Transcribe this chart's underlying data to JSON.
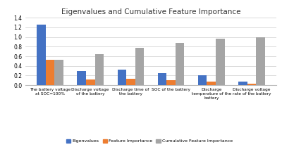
{
  "title": "Eigenvalues and Cumulative Feature Importance",
  "categories": [
    "The battery voltage\nat SOC=100%",
    "Discharge voltage\nof the battery",
    "Discharge time of\nthe battery",
    "SOC of the battery",
    "Discharge\ntemperature of the\nbattery",
    "Discharge voltage\nrate of the battery"
  ],
  "eigenvalues": [
    1.26,
    0.29,
    0.32,
    0.25,
    0.21,
    0.08
  ],
  "feature_importance": [
    0.53,
    0.12,
    0.13,
    0.1,
    0.08,
    0.03
  ],
  "cumulative_fi": [
    0.53,
    0.65,
    0.78,
    0.87,
    0.96,
    1.0
  ],
  "colors": {
    "eigenvalues": "#4472C4",
    "feature_importance": "#ED7D31",
    "cumulative_fi": "#A5A5A5"
  },
  "ylim": [
    0,
    1.4
  ],
  "yticks": [
    0,
    0.2,
    0.4,
    0.6,
    0.8,
    1.0,
    1.2,
    1.4
  ],
  "legend_labels": [
    "Eigenvalues",
    "Feature Importance",
    "Cumulative Feature Importance"
  ],
  "background_color": "#FFFFFF"
}
